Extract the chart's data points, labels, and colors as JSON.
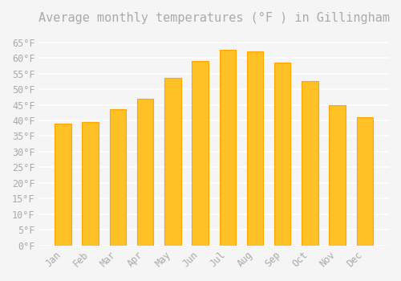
{
  "title": "Average monthly temperatures (°F ) in Gillingham",
  "months": [
    "Jan",
    "Feb",
    "Mar",
    "Apr",
    "May",
    "Jun",
    "Jul",
    "Aug",
    "Sep",
    "Oct",
    "Nov",
    "Dec"
  ],
  "values": [
    39.0,
    39.5,
    43.5,
    47.0,
    53.5,
    59.0,
    62.5,
    62.0,
    58.5,
    52.5,
    45.0,
    41.0
  ],
  "bar_color": "#FFC125",
  "bar_edge_color": "#FFA500",
  "background_color": "#F5F5F5",
  "grid_color": "#FFFFFF",
  "text_color": "#AAAAAA",
  "ylim": [
    0,
    68
  ],
  "yticks": [
    0,
    5,
    10,
    15,
    20,
    25,
    30,
    35,
    40,
    45,
    50,
    55,
    60,
    65
  ],
  "title_fontsize": 11,
  "tick_fontsize": 8.5,
  "font_family": "monospace"
}
